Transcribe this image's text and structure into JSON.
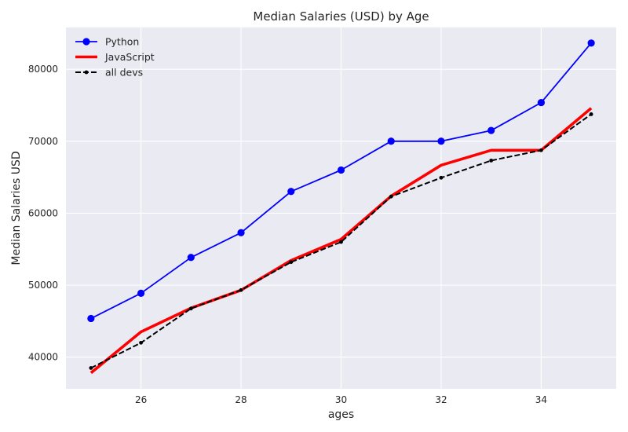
{
  "chart_data": {
    "type": "line",
    "title": "Median Salaries (USD) by Age",
    "xlabel": "ages",
    "ylabel": "Median Salaries USD",
    "x": [
      25,
      26,
      27,
      28,
      29,
      30,
      31,
      32,
      33,
      34,
      35
    ],
    "xlim": [
      24.5,
      35.5
    ],
    "ylim": [
      35600,
      85800
    ],
    "xticks": [
      26,
      28,
      30,
      32,
      34
    ],
    "yticks": [
      40000,
      50000,
      60000,
      70000,
      80000
    ],
    "grid": true,
    "legend_position": "upper-left",
    "background_color": "#eaeaf2",
    "series": [
      {
        "name": "Python",
        "color": "#0000ff",
        "style": "solid",
        "marker": "circle",
        "values": [
          45372,
          48876,
          53850,
          57287,
          63016,
          65998,
          70003,
          70000,
          71496,
          75370,
          83640
        ]
      },
      {
        "name": "JavaScript",
        "color": "#ff0000",
        "style": "solid-thick",
        "marker": "none",
        "values": [
          37810,
          43515,
          46823,
          49293,
          53437,
          56373,
          62375,
          66674,
          68745,
          68746,
          74583
        ]
      },
      {
        "name": "all devs",
        "color": "#000000",
        "style": "dashed",
        "marker": "point",
        "values": [
          38496,
          42000,
          46752,
          49320,
          53200,
          56000,
          62316,
          64928,
          67317,
          68748,
          73752
        ]
      }
    ]
  }
}
